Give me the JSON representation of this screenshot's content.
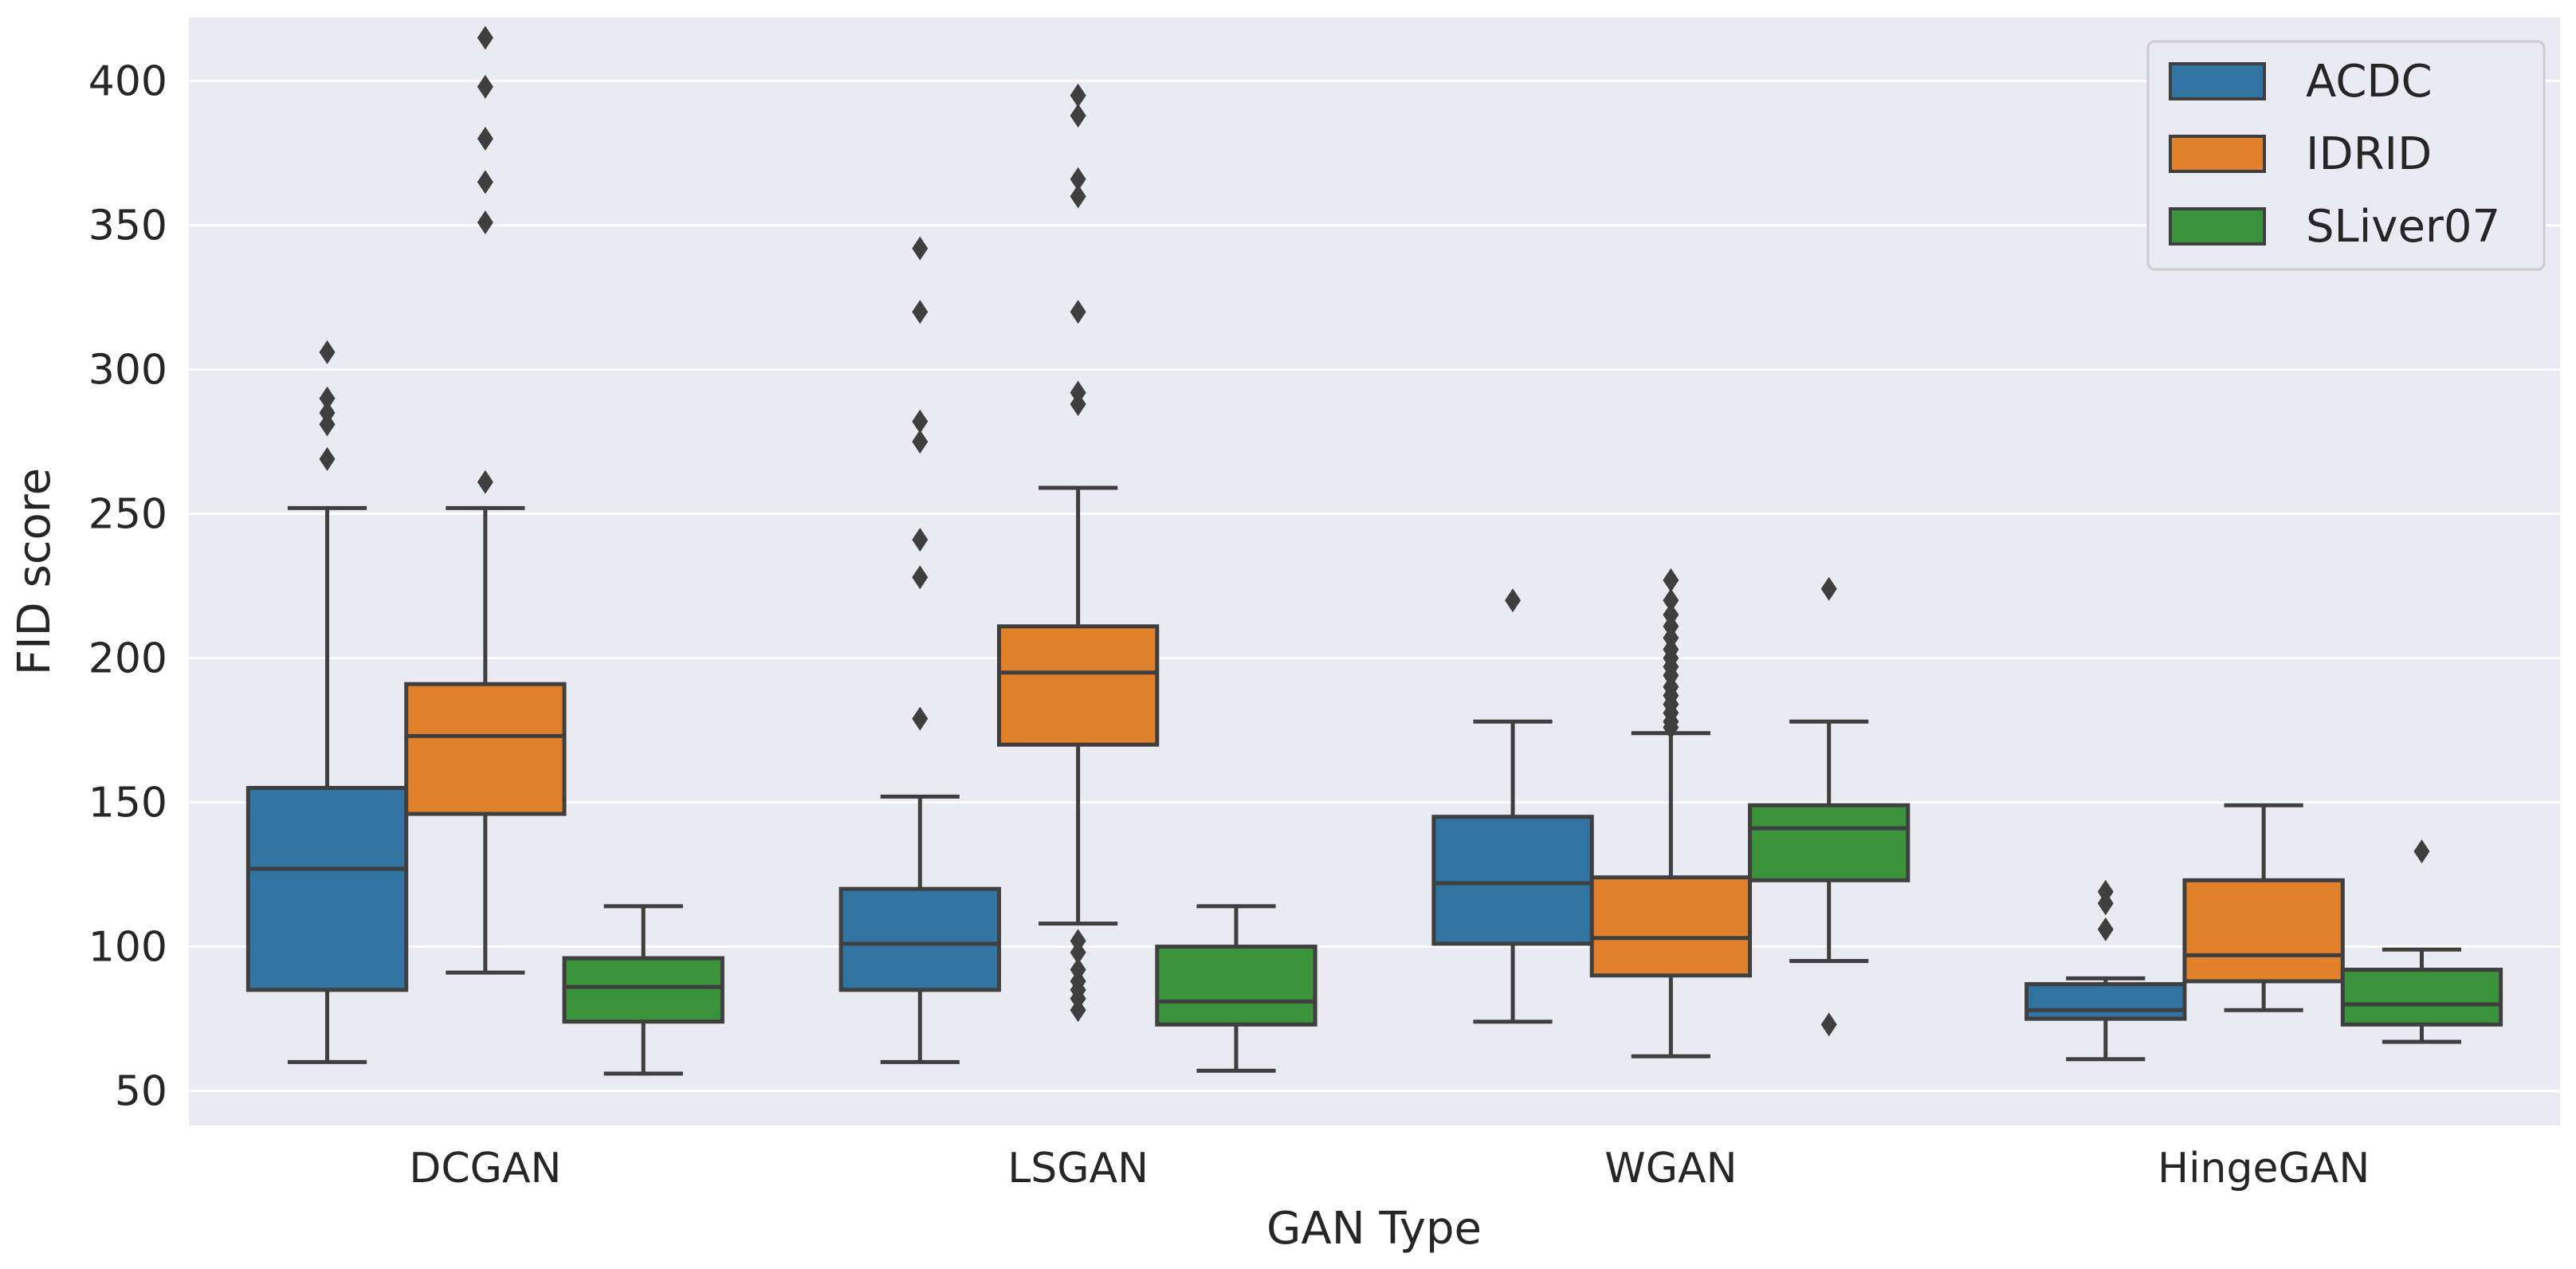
{
  "chart_data": {
    "type": "box",
    "title": "",
    "xlabel": "GAN Type",
    "ylabel": "FID score",
    "ylim": [
      38,
      422
    ],
    "yticks": [
      50,
      100,
      150,
      200,
      250,
      300,
      350,
      400
    ],
    "ytick_labels": [
      "50",
      "100",
      "150",
      "200",
      "250",
      "300",
      "350",
      "400"
    ],
    "grid": true,
    "legend_position": "top-right",
    "categories": [
      "DCGAN",
      "LSGAN",
      "WGAN",
      "HingeGAN"
    ],
    "series": [
      {
        "name": "ACDC",
        "color": "#3274a1",
        "boxes": [
          {
            "whisker_low": 60,
            "q1": 85,
            "median": 127,
            "q3": 155,
            "whisker_high": 252,
            "outliers": [
              269,
              281,
              285,
              290,
              306
            ]
          },
          {
            "whisker_low": 60,
            "q1": 85,
            "median": 101,
            "q3": 120,
            "whisker_high": 152,
            "outliers": [
              179,
              228,
              241,
              275,
              282,
              320,
              342
            ]
          },
          {
            "whisker_low": 74,
            "q1": 101,
            "median": 122,
            "q3": 145,
            "whisker_high": 178,
            "outliers": [
              220
            ]
          },
          {
            "whisker_low": 61,
            "q1": 75,
            "median": 78,
            "q3": 87,
            "whisker_high": 89,
            "outliers": [
              106,
              115,
              119
            ]
          }
        ]
      },
      {
        "name": "IDRID",
        "color": "#e1812c",
        "boxes": [
          {
            "whisker_low": 91,
            "q1": 146,
            "median": 173,
            "q3": 191,
            "whisker_high": 252,
            "outliers": [
              261,
              351,
              365,
              380,
              398,
              415
            ]
          },
          {
            "whisker_low": 108,
            "q1": 170,
            "median": 195,
            "q3": 211,
            "whisker_high": 259,
            "outliers": [
              78,
              82,
              85,
              88,
              92,
              98,
              102,
              288,
              292,
              320,
              360,
              366,
              388,
              395
            ]
          },
          {
            "whisker_low": 62,
            "q1": 90,
            "median": 103,
            "q3": 124,
            "whisker_high": 174,
            "outliers": [
              176,
              178,
              181,
              184,
              187,
              190,
              194,
              197,
              200,
              203,
              207,
              211,
              215,
              220,
              227
            ]
          },
          {
            "whisker_low": 78,
            "q1": 88,
            "median": 97,
            "q3": 123,
            "whisker_high": 149,
            "outliers": []
          }
        ]
      },
      {
        "name": "SLiver07",
        "color": "#3a923a",
        "boxes": [
          {
            "whisker_low": 56,
            "q1": 74,
            "median": 86,
            "q3": 96,
            "whisker_high": 114,
            "outliers": []
          },
          {
            "whisker_low": 57,
            "q1": 73,
            "median": 81,
            "q3": 100,
            "whisker_high": 114,
            "outliers": []
          },
          {
            "whisker_low": 95,
            "q1": 123,
            "median": 141,
            "q3": 149,
            "whisker_high": 178,
            "outliers": [
              73,
              224
            ]
          },
          {
            "whisker_low": 67,
            "q1": 73,
            "median": 80,
            "q3": 92,
            "whisker_high": 99,
            "outliers": [
              133
            ]
          }
        ]
      }
    ]
  }
}
